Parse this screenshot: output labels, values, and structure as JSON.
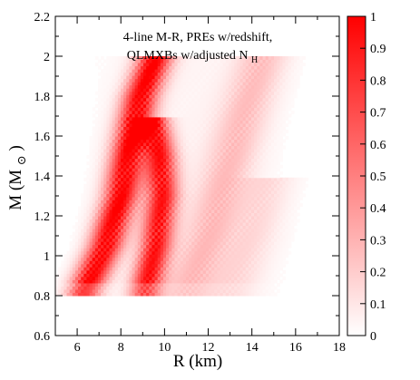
{
  "chart_data": {
    "type": "heatmap",
    "title": "",
    "annotation": {
      "line1": "4-line M-R, PREs w/redshift,",
      "line2_main": "QLMXBs w/adjusted N",
      "line2_sub": "H"
    },
    "xlabel": "R (km)",
    "ylabel": {
      "main": "M (M",
      "sub": "⊙",
      "close": ")"
    },
    "xlim": [
      5,
      18
    ],
    "ylim": [
      0.6,
      2.2
    ],
    "x_ticks": [
      6,
      8,
      10,
      12,
      14,
      16,
      18
    ],
    "x_tick_labels": [
      "6",
      "8",
      "10",
      "12",
      "14",
      "16",
      "18"
    ],
    "y_ticks": [
      0.6,
      0.8,
      1.0,
      1.2,
      1.4,
      1.6,
      1.8,
      2.0,
      2.2
    ],
    "y_tick_labels": [
      "0.6",
      "0.8",
      "1",
      "1.2",
      "1.4",
      "1.6",
      "1.8",
      "2",
      "2.2"
    ],
    "colorbar": {
      "min": 0,
      "max": 1,
      "ticks": [
        0,
        0.1,
        0.2,
        0.3,
        0.4,
        0.5,
        0.6,
        0.7,
        0.8,
        0.9,
        1
      ],
      "tick_labels": [
        "0",
        "0.1",
        "0.2",
        "0.3",
        "0.4",
        "0.5",
        "0.6",
        "0.7",
        "0.8",
        "0.9",
        "1"
      ],
      "color_low": "#ffffff",
      "color_high": "#ff0000"
    },
    "density_ridges": [
      {
        "points": [
          [
            6.3,
            0.82
          ],
          [
            7.3,
            1.05
          ],
          [
            8.0,
            1.3
          ],
          [
            8.4,
            1.55
          ],
          [
            8.9,
            1.8
          ],
          [
            9.6,
            2.0
          ]
        ],
        "peak": 0.95,
        "width_km": 0.55
      },
      {
        "points": [
          [
            9.1,
            0.82
          ],
          [
            9.6,
            1.05
          ],
          [
            9.9,
            1.3
          ],
          [
            9.8,
            1.5
          ],
          [
            9.4,
            1.7
          ]
        ],
        "peak": 0.85,
        "width_km": 0.5
      },
      {
        "points": [
          [
            11.0,
            0.82
          ],
          [
            12.0,
            1.1
          ],
          [
            12.8,
            1.4
          ],
          [
            13.6,
            1.7
          ],
          [
            14.5,
            2.0
          ]
        ],
        "peak": 0.22,
        "width_km": 0.8
      },
      {
        "points": [
          [
            13.0,
            0.82
          ],
          [
            14.0,
            1.1
          ],
          [
            14.8,
            1.4
          ]
        ],
        "peak": 0.12,
        "width_km": 0.8
      }
    ],
    "support": {
      "m_min": 0.8,
      "m_max": 2.0
    },
    "grid": false,
    "legend": "colorbar-right"
  }
}
